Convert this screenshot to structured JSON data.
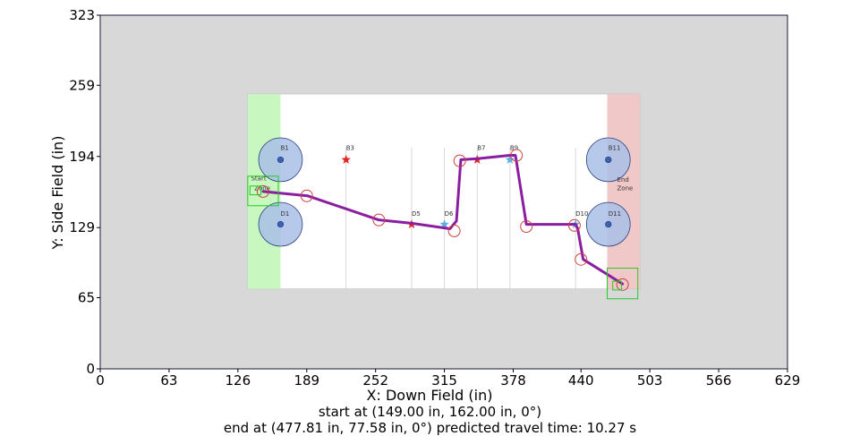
{
  "chart_data": {
    "type": "line",
    "xlabel": "X: Down Field (in)",
    "ylabel": "Y: Side Field (in)",
    "xlim": [
      0,
      629
    ],
    "ylim": [
      0,
      323
    ],
    "xticks": [
      0,
      63,
      126,
      189,
      252,
      315,
      378,
      440,
      503,
      566,
      629
    ],
    "yticks": [
      0,
      65,
      129,
      194,
      259,
      323
    ],
    "grid": false,
    "field": {
      "x_range": [
        135,
        494
      ],
      "y_range": [
        73,
        251
      ],
      "start_zone_x": [
        135,
        165
      ],
      "end_zone_x": [
        464,
        494
      ],
      "colors": {
        "outside": "#d8d8d8",
        "field": "#ffffff",
        "start_zone": "#c8f7c0",
        "end_zone": "#f0c8c8",
        "marker_disc": "#aac0e6",
        "marker_dot": "#3a62b8",
        "red_star": "#e02828",
        "blue_star": "#5ab0e0",
        "path": "#8b1ea0",
        "waypoint": "#d04040",
        "box": "#22cc22"
      },
      "labels": [
        {
          "text": "B1",
          "x": 165,
          "y": 200
        },
        {
          "text": "D1",
          "x": 165,
          "y": 140
        },
        {
          "text": "B3",
          "x": 225,
          "y": 200
        },
        {
          "text": "D5",
          "x": 285,
          "y": 140
        },
        {
          "text": "D6",
          "x": 315,
          "y": 140
        },
        {
          "text": "B7",
          "x": 345,
          "y": 200
        },
        {
          "text": "B9",
          "x": 375,
          "y": 200
        },
        {
          "text": "D10",
          "x": 435,
          "y": 140
        },
        {
          "text": "B11",
          "x": 465,
          "y": 200
        },
        {
          "text": "D11",
          "x": 465,
          "y": 140
        },
        {
          "text": "Start",
          "x": 138,
          "y": 172
        },
        {
          "text": "Zone",
          "x": 141,
          "y": 163
        },
        {
          "text": "End",
          "x": 473,
          "y": 171
        },
        {
          "text": "Zone",
          "x": 473,
          "y": 163
        }
      ],
      "large_markers": [
        {
          "x": 165,
          "y": 191,
          "r": 20
        },
        {
          "x": 165,
          "y": 132,
          "r": 20
        },
        {
          "x": 465,
          "y": 191,
          "r": 20
        },
        {
          "x": 465,
          "y": 132,
          "r": 20
        }
      ],
      "stars": [
        {
          "x": 225,
          "y": 191,
          "color": "red"
        },
        {
          "x": 285,
          "y": 132,
          "color": "red"
        },
        {
          "x": 315,
          "y": 132,
          "color": "blue"
        },
        {
          "x": 345,
          "y": 191,
          "color": "red"
        },
        {
          "x": 375,
          "y": 191,
          "color": "blue"
        },
        {
          "x": 435,
          "y": 132,
          "color": "blue"
        }
      ],
      "vertical_lines_x": [
        225,
        285,
        315,
        345,
        375,
        435
      ]
    },
    "series": [
      {
        "x": [
          149,
          190,
          255,
          285,
          320,
          326,
          330,
          345,
          375,
          380,
          390,
          435,
          437,
          442,
          478
        ],
        "y": [
          162,
          158,
          136,
          133,
          128,
          135,
          191,
          192,
          195,
          195,
          132,
          132,
          128,
          100,
          77.6
        ]
      }
    ],
    "waypoints": [
      {
        "x": 149,
        "y": 162
      },
      {
        "x": 189,
        "y": 158
      },
      {
        "x": 255,
        "y": 136
      },
      {
        "x": 324,
        "y": 126
      },
      {
        "x": 329,
        "y": 190
      },
      {
        "x": 381,
        "y": 195
      },
      {
        "x": 390,
        "y": 130
      },
      {
        "x": 434,
        "y": 131
      },
      {
        "x": 440,
        "y": 100
      },
      {
        "x": 478,
        "y": 77
      }
    ],
    "boxes": [
      {
        "x": [
          135,
          163
        ],
        "y": [
          149,
          176
        ]
      },
      {
        "x": [
          464,
          492
        ],
        "y": [
          64,
          92
        ]
      },
      {
        "x": [
          137,
          147
        ],
        "y": [
          159,
          167
        ]
      },
      {
        "x": [
          469,
          477
        ],
        "y": [
          72,
          80
        ]
      }
    ]
  },
  "caption": {
    "line1": "start at (149.00 in, 162.00 in, 0°)",
    "line2": "end at (477.81 in, 77.58 in, 0°) predicted travel time: 10.27 s"
  }
}
